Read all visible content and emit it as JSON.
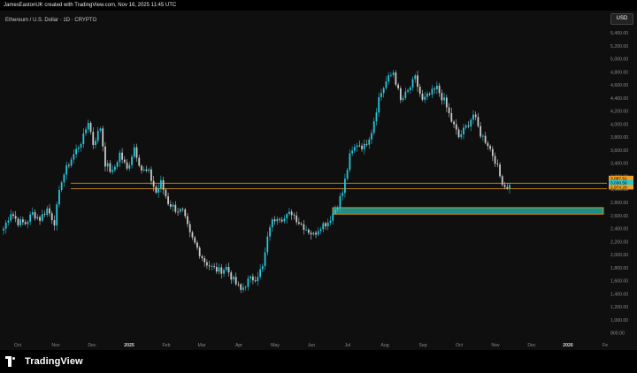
{
  "header": {
    "credit": "JamesEastonUK created with TradingView.com, Nov 16, 2025 11:45 UTC"
  },
  "chart_header": {
    "symbol_line": "Ethereum / U.S. Dollar · 1D · CRYPTO",
    "currency": "USD"
  },
  "footer": {
    "brand": "TradingView"
  },
  "colors": {
    "background": "#0f0f0f",
    "up_candle": "#26c6da",
    "down_candle": "#c8c8c8",
    "zone_fill": "#1f8f86",
    "zone_border": "#f0a020",
    "level_line": "#f0a020",
    "price_tag_cyan": "#26c6da",
    "price_tag_orange": "#f0a020"
  },
  "chart_data": {
    "type": "candlestick",
    "instrument": "Ethereum / U.S. Dollar",
    "timeframe": "1D",
    "currency": "USD",
    "x_tick_labels": [
      "Oct",
      "Nov",
      "Dec",
      "2025",
      "Feb",
      "Mar",
      "Apr",
      "May",
      "Jun",
      "Jul",
      "Aug",
      "Sep",
      "Oct",
      "Nov",
      "Dec",
      "2026",
      "Fe"
    ],
    "y_tick_labels": [
      "800.00",
      "1,000.00",
      "1,200.00",
      "1,400.00",
      "1,600.00",
      "1,800.00",
      "2,000.00",
      "2,200.00",
      "2,400.00",
      "2,600.00",
      "2,800.00",
      "3,000.00",
      "3,200.00",
      "3,400.00",
      "3,600.00",
      "3,800.00",
      "4,000.00",
      "4,200.00",
      "4,400.00",
      "4,600.00",
      "4,800.00",
      "5,000.00",
      "5,200.00",
      "5,400.00"
    ],
    "y_range": [
      700,
      5550
    ],
    "price_path": [
      [
        0,
        2400
      ],
      [
        3,
        2650
      ],
      [
        6,
        2500
      ],
      [
        9,
        2480
      ],
      [
        12,
        2630
      ],
      [
        15,
        2550
      ],
      [
        18,
        2700
      ],
      [
        21,
        2500
      ],
      [
        24,
        3150
      ],
      [
        27,
        3400
      ],
      [
        30,
        3600
      ],
      [
        33,
        3800
      ],
      [
        35,
        4050
      ],
      [
        37,
        3700
      ],
      [
        40,
        3950
      ],
      [
        42,
        3400
      ],
      [
        45,
        3250
      ],
      [
        48,
        3550
      ],
      [
        51,
        3300
      ],
      [
        54,
        3650
      ],
      [
        57,
        3300
      ],
      [
        60,
        3250
      ],
      [
        63,
        2950
      ],
      [
        65,
        3100
      ],
      [
        68,
        2800
      ],
      [
        71,
        2700
      ],
      [
        74,
        2650
      ],
      [
        77,
        2300
      ],
      [
        80,
        2100
      ],
      [
        83,
        1900
      ],
      [
        86,
        1800
      ],
      [
        89,
        1750
      ],
      [
        92,
        1800
      ],
      [
        95,
        1600
      ],
      [
        98,
        1450
      ],
      [
        101,
        1600
      ],
      [
        104,
        1650
      ],
      [
        107,
        1800
      ],
      [
        110,
        2450
      ],
      [
        113,
        2600
      ],
      [
        116,
        2550
      ],
      [
        119,
        2650
      ],
      [
        122,
        2500
      ],
      [
        125,
        2400
      ],
      [
        128,
        2300
      ],
      [
        131,
        2450
      ],
      [
        134,
        2500
      ],
      [
        137,
        2700
      ],
      [
        140,
        2950
      ],
      [
        143,
        3500
      ],
      [
        146,
        3700
      ],
      [
        149,
        3650
      ],
      [
        152,
        3900
      ],
      [
        155,
        4400
      ],
      [
        158,
        4650
      ],
      [
        161,
        4800
      ],
      [
        164,
        4350
      ],
      [
        167,
        4500
      ],
      [
        170,
        4700
      ],
      [
        173,
        4350
      ],
      [
        176,
        4450
      ],
      [
        179,
        4550
      ],
      [
        182,
        4350
      ],
      [
        185,
        4050
      ],
      [
        188,
        3800
      ],
      [
        191,
        3950
      ],
      [
        194,
        4150
      ],
      [
        197,
        3850
      ],
      [
        200,
        3700
      ],
      [
        203,
        3450
      ],
      [
        205,
        3200
      ],
      [
        207,
        3050
      ]
    ],
    "zone": {
      "low": 2620,
      "high": 2720,
      "from_index": 137,
      "label": ""
    },
    "levels": [
      {
        "price": 3095
      },
      {
        "price": 3010
      }
    ],
    "price_tags": [
      "3,087.51",
      "3,030.56",
      "2,974.29"
    ],
    "grid": false,
    "legend": "none"
  }
}
